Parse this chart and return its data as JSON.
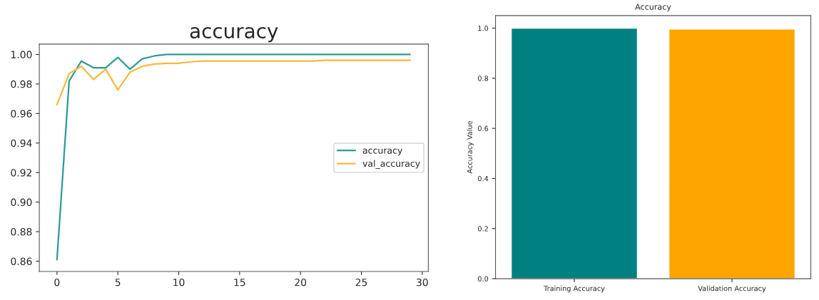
{
  "chart_data": [
    {
      "type": "line",
      "title": "accuracy",
      "x": [
        0,
        1,
        2,
        3,
        4,
        5,
        6,
        7,
        8,
        9,
        10,
        11,
        12,
        13,
        14,
        15,
        16,
        17,
        18,
        19,
        20,
        21,
        22,
        23,
        24,
        25,
        26,
        27,
        28,
        29
      ],
      "series": [
        {
          "name": "accuracy",
          "color": "#2e9a94",
          "values": [
            0.861,
            0.982,
            0.9955,
            0.991,
            0.991,
            0.998,
            0.99,
            0.997,
            0.999,
            1.0,
            1.0,
            1.0,
            1.0,
            1.0,
            1.0,
            1.0,
            1.0,
            1.0,
            1.0,
            1.0,
            1.0,
            1.0,
            1.0,
            1.0,
            1.0,
            1.0,
            1.0,
            1.0,
            1.0,
            1.0
          ]
        },
        {
          "name": "val_accuracy",
          "color": "#f5b93e",
          "values": [
            0.966,
            0.987,
            0.992,
            0.983,
            0.99,
            0.976,
            0.988,
            0.992,
            0.9935,
            0.994,
            0.994,
            0.995,
            0.9955,
            0.9955,
            0.9955,
            0.9955,
            0.9955,
            0.9955,
            0.9955,
            0.9955,
            0.9955,
            0.9955,
            0.996,
            0.996,
            0.996,
            0.996,
            0.996,
            0.996,
            0.996,
            0.996
          ]
        }
      ],
      "xlim": [
        -1.45,
        30.5
      ],
      "ylim": [
        0.853,
        1.007
      ],
      "xticks": [
        0,
        5,
        10,
        15,
        20,
        25,
        30
      ],
      "yticks": [
        {
          "value": 0.86,
          "label": "0.86"
        },
        {
          "value": 0.88,
          "label": "0.88"
        },
        {
          "value": 0.9,
          "label": "0.90"
        },
        {
          "value": 0.92,
          "label": "0.92"
        },
        {
          "value": 0.94,
          "label": "0.94"
        },
        {
          "value": 0.96,
          "label": "0.96"
        },
        {
          "value": 0.98,
          "label": "0.98"
        },
        {
          "value": 1.0,
          "label": "1.00"
        }
      ],
      "legend": "right",
      "grid": false,
      "marker": "none",
      "line_style": "solid"
    },
    {
      "type": "bar",
      "title": "Accuracy",
      "ylabel": "Accuracy Value",
      "categories": [
        "Training Accuracy",
        "Validation Accuracy"
      ],
      "values": [
        1.0,
        0.996
      ],
      "colors": [
        "#008080",
        "#ffa500"
      ],
      "ylim": [
        0,
        1.05
      ],
      "yticks": [
        {
          "value": 0,
          "label": "0.0"
        },
        {
          "value": 0.2,
          "label": "0.2"
        },
        {
          "value": 0.4,
          "label": "0.4"
        },
        {
          "value": 0.6,
          "label": "0.6"
        },
        {
          "value": 0.8,
          "label": "0.8"
        },
        {
          "value": 1.0,
          "label": "1.0"
        }
      ],
      "grid": false
    }
  ]
}
